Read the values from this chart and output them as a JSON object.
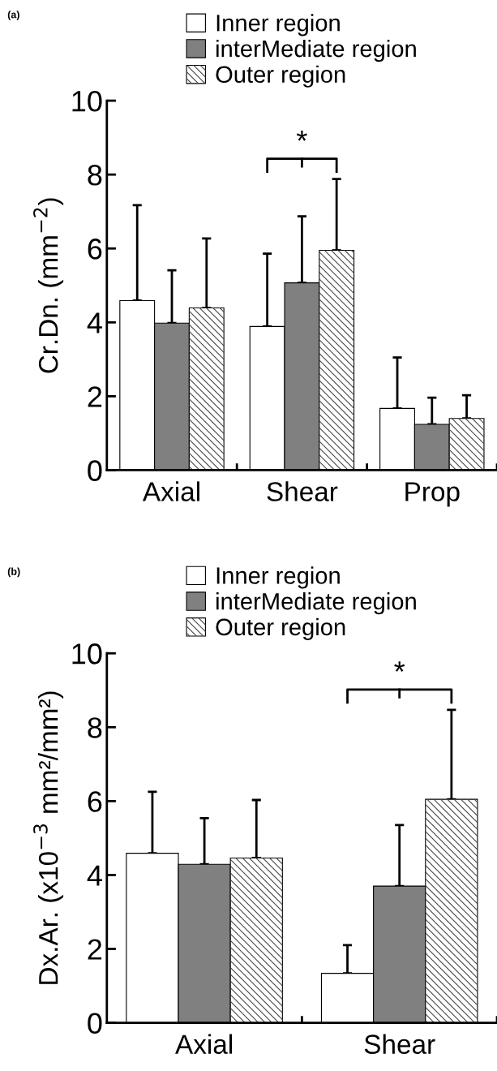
{
  "chart_data": [
    {
      "type": "bar",
      "title": "(a)",
      "ylabel": "Cr.Dn. (mm$^{−2}$)",
      "categories": [
        "Axial",
        "Shear",
        "Prop"
      ],
      "series": [
        {
          "name": "Inner region",
          "color": "#ffffff",
          "values": [
            4.59,
            3.89,
            1.67
          ],
          "errors": [
            [
              4.59,
              7.17
            ],
            [
              3.89,
              5.86
            ],
            [
              1.67,
              3.05
            ]
          ]
        },
        {
          "name": "interMediate region",
          "color": "#808080",
          "values": [
            3.98,
            5.07,
            1.24
          ],
          "errors": [
            [
              3.98,
              5.41
            ],
            [
              5.07,
              6.87
            ],
            [
              1.24,
              1.96
            ]
          ]
        },
        {
          "name": "Outer region",
          "color": "#ffffff",
          "values": [
            4.39,
            5.95,
            1.4
          ],
          "errors": [
            [
              4.39,
              6.27
            ],
            [
              5.95,
              7.88
            ],
            [
              1.4,
              2.03
            ]
          ]
        }
      ],
      "ylim": [
        0,
        10
      ],
      "yticks": [
        0,
        2,
        4,
        6,
        8,
        10
      ],
      "grid": false,
      "legend": "top",
      "annotations": [
        "*"
      ]
    },
    {
      "type": "bar",
      "title": "(b)",
      "ylabel": "Dx.Ar. (x10$^{−3}$ mm²/mm²)",
      "categories": [
        "Axial",
        "Shear"
      ],
      "series": [
        {
          "name": "Inner region",
          "color": "#ffffff",
          "values": [
            4.59,
            1.34
          ],
          "errors": [
            [
              4.59,
              6.25
            ],
            [
              1.34,
              2.1
            ]
          ]
        },
        {
          "name": "interMediate region",
          "color": "#808080",
          "values": [
            4.29,
            3.7
          ],
          "errors": [
            [
              4.29,
              5.54
            ],
            [
              3.7,
              5.35
            ]
          ]
        },
        {
          "name": "Outer region",
          "color": "#ffffff",
          "values": [
            4.46,
            6.05
          ],
          "errors": [
            [
              4.46,
              6.03
            ],
            [
              6.05,
              8.47
            ]
          ]
        }
      ],
      "ylim": [
        0,
        10
      ],
      "yticks": [
        0,
        2,
        4,
        6,
        8,
        10
      ],
      "grid": false,
      "legend": "top",
      "annotations": [
        "*"
      ]
    }
  ]
}
